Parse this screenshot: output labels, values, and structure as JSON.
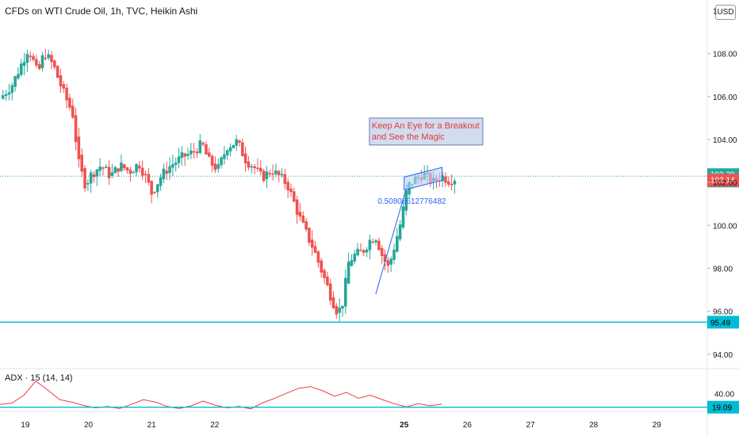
{
  "chart_title": "CFDs on WTI Crude Oil, 1h, TVC, Heikin Ashi",
  "currency_label": "USD",
  "indicator_label": "ADX · 15 (14, 14)",
  "colors": {
    "up": "#26a69a",
    "down": "#ef5350",
    "support": "#00bcd4",
    "trendline": "#2962ff",
    "channel_fill": "#bbd0f5",
    "annotation_text": "#e53935",
    "adx_line": "#f23645",
    "fib_text": "#2962ff"
  },
  "annotation": {
    "line1": "Keep An Eye for a Breakout",
    "line2": "and See the Magic"
  },
  "fib_label": "0.50808612776482",
  "chart_data": {
    "type": "candlestick",
    "price_axis": {
      "range": [
        93.4,
        110.5
      ],
      "ticks": [
        "108.00",
        "106.00",
        "104.00",
        "102.00",
        "100.00",
        "98.00",
        "96.00",
        "94.00"
      ],
      "partial_top_tick": "1"
    },
    "x_axis": {
      "range": [
        18.6,
        29.8
      ],
      "ticks": [
        {
          "v": 19,
          "label": "19",
          "bold": false
        },
        {
          "v": 20,
          "label": "20",
          "bold": false
        },
        {
          "v": 21,
          "label": "21",
          "bold": false
        },
        {
          "v": 22,
          "label": "22",
          "bold": false
        },
        {
          "v": 25,
          "label": "25",
          "bold": true
        },
        {
          "v": 26,
          "label": "26",
          "bold": false
        },
        {
          "v": 27,
          "label": "27",
          "bold": false
        },
        {
          "v": 28,
          "label": "28",
          "bold": false
        },
        {
          "v": 29,
          "label": "29",
          "bold": false
        }
      ]
    },
    "close_path": [
      [
        18.6,
        105.9
      ],
      [
        18.8,
        106.6
      ],
      [
        18.95,
        107.6
      ],
      [
        19.05,
        108.3
      ],
      [
        19.2,
        107.0
      ],
      [
        19.3,
        108.1
      ],
      [
        19.45,
        107.4
      ],
      [
        19.6,
        106.2
      ],
      [
        19.75,
        105.2
      ],
      [
        19.85,
        102.8
      ],
      [
        19.95,
        101.9
      ],
      [
        20.05,
        102.4
      ],
      [
        20.2,
        102.8
      ],
      [
        20.35,
        102.3
      ],
      [
        20.5,
        102.8
      ],
      [
        20.65,
        102.5
      ],
      [
        20.8,
        102.9
      ],
      [
        20.9,
        102.3
      ],
      [
        21.0,
        101.5
      ],
      [
        21.15,
        102.3
      ],
      [
        21.3,
        102.8
      ],
      [
        21.5,
        103.2
      ],
      [
        21.65,
        103.4
      ],
      [
        21.8,
        103.8
      ],
      [
        21.9,
        103.0
      ],
      [
        22.05,
        102.6
      ],
      [
        22.2,
        103.7
      ],
      [
        22.35,
        103.9
      ],
      [
        22.5,
        103.0
      ],
      [
        22.6,
        102.8
      ],
      [
        22.75,
        102.2
      ],
      [
        22.9,
        102.6
      ],
      [
        23.05,
        102.2
      ],
      [
        23.15,
        101.9
      ],
      [
        23.25,
        101.1
      ],
      [
        23.35,
        100.3
      ],
      [
        23.45,
        99.6
      ],
      [
        23.55,
        99.0
      ],
      [
        23.65,
        98.2
      ],
      [
        23.75,
        97.4
      ],
      [
        23.85,
        96.6
      ],
      [
        23.95,
        95.9
      ],
      [
        24.05,
        96.6
      ],
      [
        24.1,
        98.2
      ],
      [
        24.2,
        98.6
      ],
      [
        24.35,
        98.8
      ],
      [
        24.45,
        99.3
      ],
      [
        24.55,
        99.5
      ],
      [
        24.65,
        98.6
      ],
      [
        24.75,
        98.0
      ],
      [
        24.85,
        99.1
      ],
      [
        24.95,
        100.2
      ],
      [
        25.05,
        101.8
      ],
      [
        25.15,
        102.1
      ],
      [
        25.3,
        102.4
      ],
      [
        25.45,
        102.0
      ],
      [
        25.6,
        102.3
      ],
      [
        25.7,
        102.1
      ],
      [
        25.8,
        102.2
      ]
    ],
    "current_price": "102.29",
    "countdown": "17:44",
    "bid_price": "102.14",
    "support_level": "95.49",
    "adx": {
      "range": [
        35,
        47
      ],
      "tick": "40.00",
      "current": "19.09",
      "values": [
        36.8,
        37.2,
        39.5,
        43.6,
        41.0,
        38.2,
        37.5,
        36.5,
        35.8,
        36.2,
        35.6,
        36.8,
        38.2,
        37.5,
        36.2,
        35.6,
        36.4,
        37.8,
        36.6,
        35.8,
        36.2,
        35.5,
        37.3,
        38.6,
        40.1,
        41.5,
        42.0,
        40.8,
        39.2,
        40.3,
        38.6,
        39.5,
        38.2,
        37.0,
        36.1,
        37.0,
        36.4,
        36.9
      ]
    }
  }
}
